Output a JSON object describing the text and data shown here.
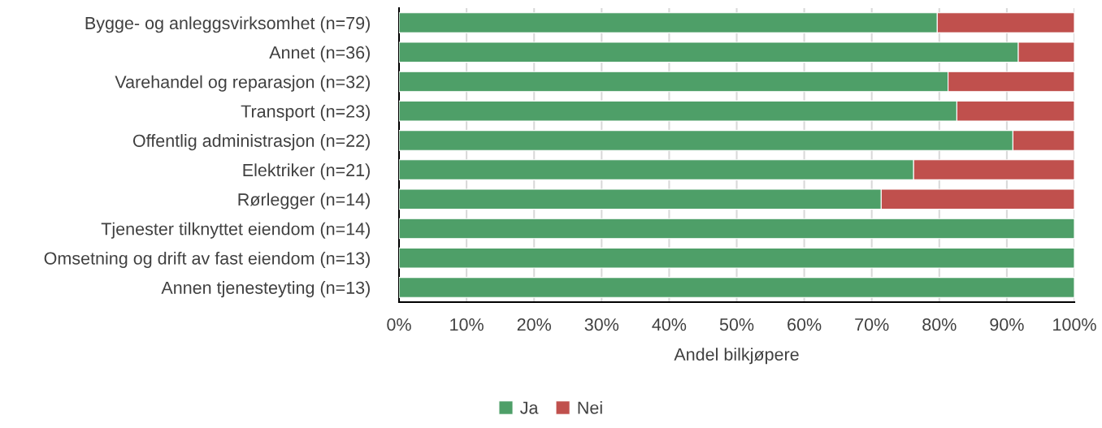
{
  "chart_data": {
    "type": "bar",
    "orientation": "horizontal",
    "stacked": true,
    "categories": [
      "Bygge- og anleggsvirksomhet (n=79)",
      "Annet (n=36)",
      "Varehandel og reparasjon (n=32)",
      "Transport (n=23)",
      "Offentlig administrasjon (n=22)",
      "Elektriker (n=21)",
      "Rørlegger (n=14)",
      "Tjenester tilknyttet eiendom (n=14)",
      "Omsetning og drift av fast eiendom (n=13)",
      "Annen tjenesteyting (n=13)"
    ],
    "series": [
      {
        "name": "Ja",
        "color": "#4e9f68",
        "values": [
          79.7,
          91.7,
          81.3,
          82.6,
          90.9,
          76.2,
          71.4,
          100,
          100,
          100
        ]
      },
      {
        "name": "Nei",
        "color": "#c0504d",
        "values": [
          20.3,
          8.3,
          18.7,
          17.4,
          9.1,
          23.8,
          28.6,
          null,
          null,
          null
        ]
      }
    ],
    "xlabel": "Andel bilkjøpere",
    "xlim": [
      0,
      100
    ],
    "xticks": [
      {
        "value": 0,
        "label": "0%"
      },
      {
        "value": 10,
        "label": "10%"
      },
      {
        "value": 20,
        "label": "20%"
      },
      {
        "value": 30,
        "label": "30%"
      },
      {
        "value": 40,
        "label": "40%"
      },
      {
        "value": 50,
        "label": "50%"
      },
      {
        "value": 60,
        "label": "60%"
      },
      {
        "value": 70,
        "label": "70%"
      },
      {
        "value": 80,
        "label": "80%"
      },
      {
        "value": 90,
        "label": "90%"
      },
      {
        "value": 100,
        "label": "100%"
      }
    ],
    "grid": "x",
    "legend": "bottom"
  }
}
